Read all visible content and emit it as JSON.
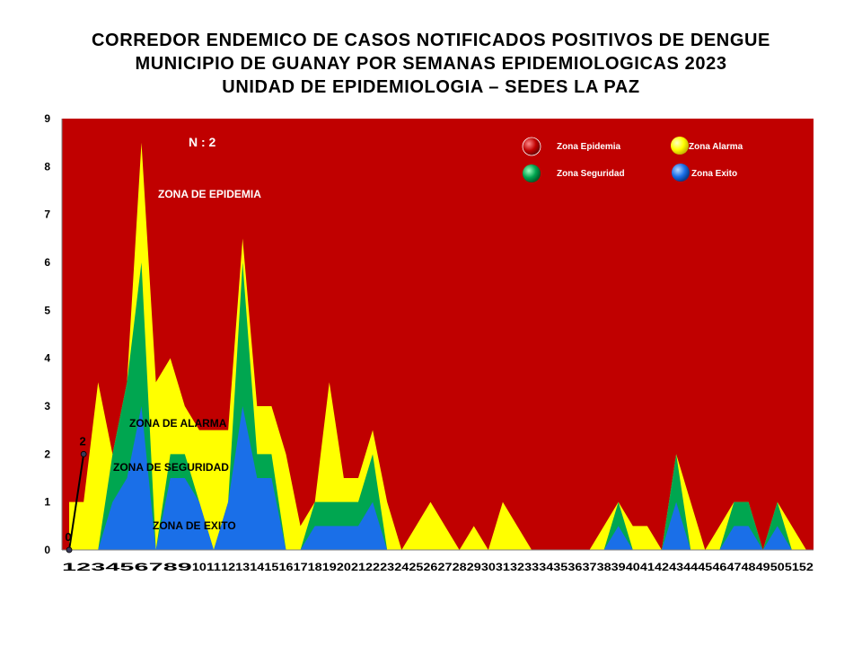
{
  "title": {
    "line1": "CORREDOR ENDEMICO DE CASOS NOTIFICADOS POSITIVOS DE DENGUE",
    "line2": "MUNICIPIO DE GUANAY POR SEMANAS EPIDEMIOLOGICAS 2023",
    "line3": "UNIDAD DE EPIDEMIOLOGIA – SEDES LA PAZ"
  },
  "chart_data": {
    "type": "area",
    "x": [
      1,
      2,
      3,
      4,
      5,
      6,
      7,
      8,
      9,
      10,
      11,
      12,
      13,
      14,
      15,
      16,
      17,
      18,
      19,
      20,
      21,
      22,
      23,
      24,
      25,
      26,
      27,
      28,
      29,
      30,
      31,
      32,
      33,
      34,
      35,
      36,
      37,
      38,
      39,
      40,
      41,
      42,
      43,
      44,
      45,
      46,
      47,
      48,
      49,
      50,
      51,
      52
    ],
    "ylim": [
      0,
      9
    ],
    "yticks": [
      0,
      1,
      2,
      3,
      4,
      5,
      6,
      7,
      8,
      9
    ],
    "series": [
      {
        "name": "Zona Epidemia",
        "color": "#c00000",
        "values": [
          9,
          9,
          9,
          9,
          9,
          9,
          9,
          9,
          9,
          9,
          9,
          9,
          9,
          9,
          9,
          9,
          9,
          9,
          9,
          9,
          9,
          9,
          9,
          9,
          9,
          9,
          9,
          9,
          9,
          9,
          9,
          9,
          9,
          9,
          9,
          9,
          9,
          9,
          9,
          9,
          9,
          9,
          9,
          9,
          9,
          9,
          9,
          9,
          9,
          9,
          9,
          9
        ]
      },
      {
        "name": "Zona Alarma",
        "color": "#ffff00",
        "values": [
          1,
          1,
          3.5,
          2,
          3.5,
          8.5,
          3.5,
          4,
          3,
          2.5,
          2.5,
          2.5,
          6.5,
          3,
          3,
          2,
          0.5,
          1,
          3.5,
          1.5,
          1.5,
          2.5,
          1,
          0,
          0.5,
          1,
          0.5,
          0,
          0.5,
          0,
          1,
          0.5,
          0,
          0,
          0,
          0,
          0,
          0.5,
          1,
          0.5,
          0.5,
          0,
          2,
          1,
          0,
          0.5,
          1,
          1,
          0,
          1,
          0.5,
          0
        ]
      },
      {
        "name": "Zona Seguridad",
        "color": "#00a650",
        "values": [
          0,
          0,
          0,
          2,
          3.5,
          6,
          0,
          2,
          2,
          1,
          0,
          1,
          6,
          2,
          2,
          0,
          0,
          1,
          1,
          1,
          1,
          2,
          0,
          0,
          0,
          0,
          0,
          0,
          0,
          0,
          0,
          0,
          0,
          0,
          0,
          0,
          0,
          0,
          1,
          0,
          0,
          0,
          2,
          0,
          0,
          0,
          1,
          1,
          0,
          1,
          0,
          0
        ]
      },
      {
        "name": "Zona Exito",
        "color": "#1a6fe8",
        "values": [
          0,
          0,
          0,
          1,
          1.5,
          3,
          0,
          1.5,
          1.5,
          1,
          0,
          1,
          3,
          1.5,
          1.5,
          0,
          0,
          0.5,
          0.5,
          0.5,
          0.5,
          1,
          0,
          0,
          0,
          0,
          0,
          0,
          0,
          0,
          0,
          0,
          0,
          0,
          0,
          0,
          0,
          0,
          0.5,
          0,
          0,
          0,
          1,
          0,
          0,
          0,
          0.5,
          0.5,
          0,
          0.5,
          0,
          0
        ]
      }
    ],
    "cases": {
      "x": [
        1,
        2
      ],
      "y": [
        0,
        2
      ],
      "labels": [
        "0",
        "2"
      ]
    },
    "annotations": {
      "n": "N : 2",
      "epidemia": "ZONA DE EPIDEMIA",
      "alarma": "ZONA DE ALARMA",
      "seguridad": "ZONA DE  SEGURIDAD",
      "exito": "ZONA DE  EXITO"
    },
    "legend": {
      "position": "top-right",
      "items": [
        {
          "label": "Zona Epidemia",
          "color": "#c00000"
        },
        {
          "label": "Zona Alarma",
          "color": "#ffff00"
        },
        {
          "label": "Zona Seguridad",
          "color": "#00a650"
        },
        {
          "label": "Zona Exito",
          "color": "#1a6fe8"
        }
      ]
    }
  }
}
